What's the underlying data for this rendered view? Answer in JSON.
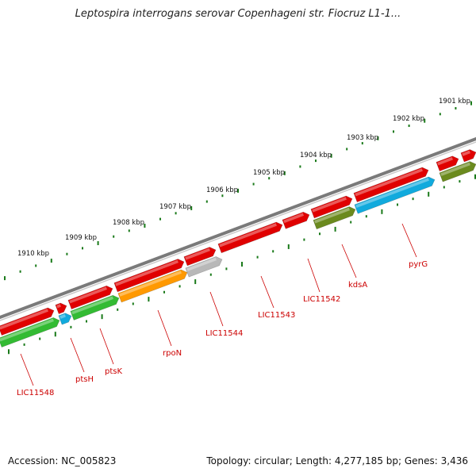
{
  "title": "Leptospira interrogans serovar Copenhageni str. Fiocruz L1-1...",
  "footer": {
    "accession": "Accession: NC_005823",
    "summary": "Topology: circular; Length: 4,277,185 bp; Genes: 3,436"
  },
  "colors": {
    "backbone": "#7a7a7a",
    "forward_gene": "#e00000",
    "green_gene": "#33bb33",
    "cyan_gene": "#11aadd",
    "orange_gene": "#ff9900",
    "gray_gene": "#b8b8b8",
    "olive_gene": "#6b8a1e",
    "ticks": "#1a7a1a",
    "label": "#cc0000"
  },
  "ruler": {
    "labels": [
      "1901 kbp",
      "1902 kbp",
      "1903 kbp",
      "1904 kbp",
      "1905 kbp",
      "1906 kbp",
      "1907 kbp",
      "1908 kbp",
      "1909 kbp",
      "1910 kbp"
    ]
  },
  "gene_labels": [
    "pyrG",
    "kdsA",
    "LIC11542",
    "LIC11543",
    "LIC11544",
    "rpoN",
    "ptsK",
    "ptsH",
    "LIC11548"
  ]
}
